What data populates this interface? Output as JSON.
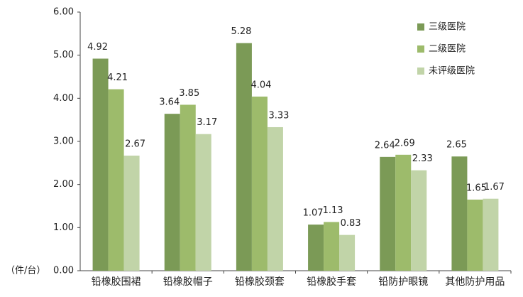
{
  "chart_data": {
    "type": "bar",
    "y_axis_label": "（件/台）",
    "categories": [
      "铅橡胶围裙",
      "铅橡胶帽子",
      "铅橡胶颈套",
      "铅橡胶手套",
      "铅防护眼镜",
      "其他防护用品"
    ],
    "series": [
      {
        "name": "三级医院",
        "color": "#7b9a56",
        "values": [
          4.92,
          3.64,
          5.28,
          1.07,
          2.64,
          2.65
        ]
      },
      {
        "name": "二级医院",
        "color": "#9dbb6b",
        "values": [
          4.21,
          3.85,
          4.04,
          1.13,
          2.69,
          1.65
        ]
      },
      {
        "name": "未评级医院",
        "color": "#c1d4a8",
        "values": [
          2.67,
          3.17,
          3.33,
          0.83,
          2.33,
          1.67
        ]
      }
    ],
    "ylim": [
      0,
      6
    ],
    "yticks": [
      {
        "value": 0,
        "label": "0.00"
      },
      {
        "value": 1,
        "label": "1.00"
      },
      {
        "value": 2,
        "label": "2.00"
      },
      {
        "value": 3,
        "label": "3.00"
      },
      {
        "value": 4,
        "label": "4.00"
      },
      {
        "value": 5,
        "label": "5.00"
      },
      {
        "value": 6,
        "label": "6.00"
      }
    ],
    "legend": "top-right"
  }
}
